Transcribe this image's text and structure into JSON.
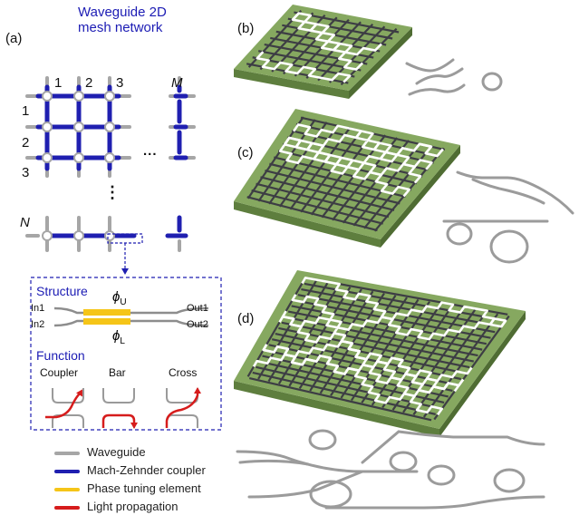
{
  "panel_a": {
    "label": "(a)",
    "title_line1": "Waveguide 2D",
    "title_line2": "mesh network",
    "col_labels": [
      "1",
      "2",
      "3",
      "M"
    ],
    "row_labels": [
      "1",
      "2",
      "3",
      "N"
    ],
    "ellipsis_h": "...",
    "ellipsis_v": "⋮"
  },
  "structure_box": {
    "structure_heading": "Structure",
    "function_heading": "Function",
    "in1": "In1",
    "in2": "In2",
    "out1": "Out1",
    "out2": "Out2",
    "phi_u": "ϕ",
    "phi_u_sub": "U",
    "phi_l": "ϕ",
    "phi_l_sub": "L",
    "functions": [
      "Coupler",
      "Bar",
      "Cross"
    ]
  },
  "legend": [
    {
      "label": "Waveguide",
      "color": "#a6a6a6"
    },
    {
      "label": "Mach-Zehnder coupler",
      "color": "#1f1fb0"
    },
    {
      "label": "Phase tuning element",
      "color": "#f5c518"
    },
    {
      "label": "Light propagation",
      "color": "#d61c1c"
    }
  ],
  "panels": {
    "b": "(b)",
    "c": "(c)",
    "d": "(d)"
  },
  "colors": {
    "chip_green": "#86a860",
    "chip_side": "#5e7e3e",
    "mzi_blue": "#1f1fb0",
    "waveguide_gray": "#a6a6a6",
    "phase_yellow": "#f5c518",
    "light_red": "#d61c1c",
    "title_blue": "#1c1cb4"
  }
}
